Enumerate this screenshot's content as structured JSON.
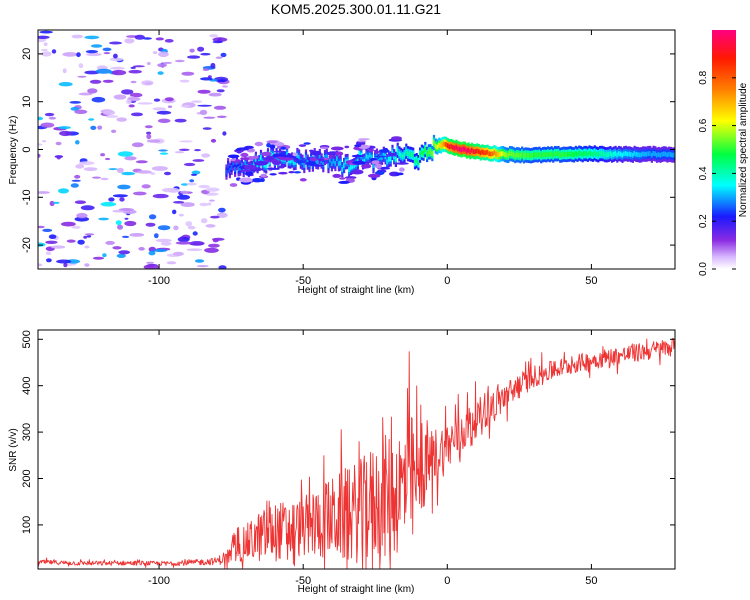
{
  "title": "KOM5.2025.300.01.11.G21",
  "chart_data": [
    {
      "type": "heatmap",
      "title": "KOM5.2025.300.01.11.G21",
      "xlabel": "Height of straight line (km)",
      "ylabel": "Frequency (Hz)",
      "xlim": [
        -142,
        79
      ],
      "ylim": [
        -25,
        25
      ],
      "xticks": [
        -100,
        -50,
        0,
        50
      ],
      "yticks": [
        -20,
        -10,
        0,
        10,
        20
      ],
      "colorbar": {
        "label": "Normalized spectral amplitude",
        "range": [
          0,
          1
        ],
        "ticks": [
          0.0,
          0.2,
          0.4,
          0.6,
          0.8
        ]
      },
      "noise_region": {
        "x": [
          -142,
          -77
        ],
        "amplitude_max": 0.3
      },
      "ridge": {
        "x": [
          -77,
          -70,
          -65,
          -60,
          -55,
          -50,
          -45,
          -40,
          -35,
          -30,
          -25,
          -20,
          -15,
          -10,
          -5,
          -2,
          0,
          5,
          10,
          15,
          20,
          30,
          40,
          50,
          60,
          70,
          79
        ],
        "frequency": [
          -4,
          -3.5,
          -2.5,
          -2,
          -1.5,
          -2.5,
          -2,
          -2.5,
          -3.5,
          -1.5,
          -2.5,
          -1.5,
          -1,
          -2,
          0.5,
          1,
          0.8,
          0,
          -0.5,
          -0.8,
          -1,
          -1.2,
          -1,
          -0.9,
          -1,
          -1,
          -1
        ],
        "amplitude": [
          0.25,
          0.3,
          0.35,
          0.35,
          0.35,
          0.3,
          0.3,
          0.3,
          0.35,
          0.35,
          0.3,
          0.35,
          0.4,
          0.45,
          0.55,
          0.7,
          0.9,
          1.0,
          0.9,
          0.8,
          0.55,
          0.5,
          0.5,
          0.45,
          0.35,
          0.3,
          0.3
        ]
      }
    },
    {
      "type": "line",
      "xlabel": "Height of straight line (km)",
      "ylabel": "SNR (v/v)",
      "xlim": [
        -142,
        79
      ],
      "ylim": [
        5,
        520
      ],
      "xticks": [
        -100,
        -50,
        0,
        50
      ],
      "yticks": [
        100,
        200,
        300,
        400,
        500
      ],
      "series": [
        {
          "name": "SNR",
          "color": "#ee3333",
          "x": [
            -142,
            -130,
            -120,
            -110,
            -100,
            -90,
            -80,
            -75,
            -70,
            -65,
            -60,
            -55,
            -50,
            -45,
            -40,
            -35,
            -30,
            -25,
            -20,
            -15,
            -12,
            -10,
            -5,
            0,
            5,
            10,
            15,
            20,
            25,
            30,
            40,
            50,
            60,
            70,
            79
          ],
          "y": [
            20,
            18,
            17,
            18,
            17,
            18,
            22,
            35,
            60,
            75,
            85,
            90,
            95,
            105,
            115,
            120,
            130,
            150,
            165,
            180,
            190,
            200,
            245,
            270,
            300,
            330,
            355,
            375,
            400,
            420,
            440,
            455,
            465,
            475,
            485
          ],
          "spread": [
            6,
            6,
            6,
            6,
            6,
            7,
            10,
            25,
            50,
            70,
            80,
            80,
            80,
            100,
            110,
            130,
            140,
            160,
            170,
            180,
            190,
            120,
            80,
            70,
            60,
            50,
            45,
            40,
            35,
            30,
            25,
            25,
            25,
            25,
            25
          ]
        }
      ]
    }
  ]
}
